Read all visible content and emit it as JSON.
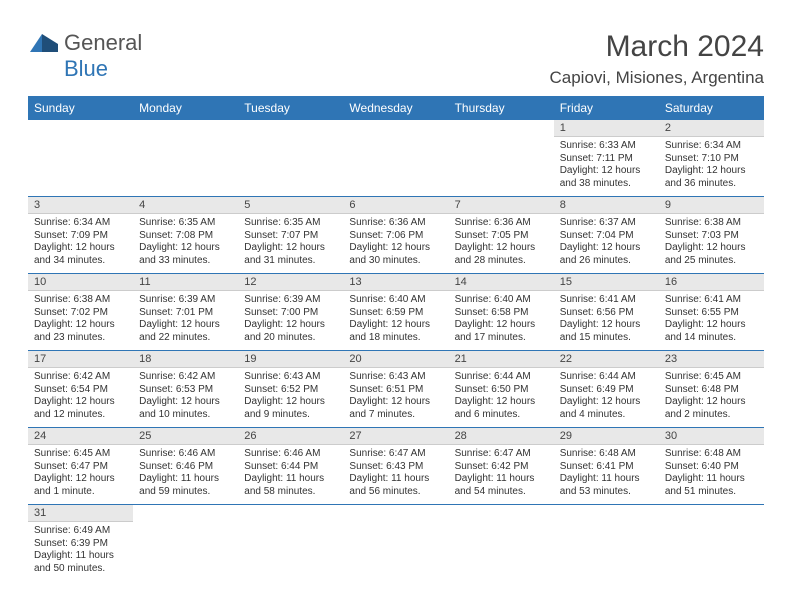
{
  "logo": {
    "text_a": "General",
    "text_b": "Blue"
  },
  "title": "March 2024",
  "location": "Capiovi, Misiones, Argentina",
  "colors": {
    "brand": "#2f75b5",
    "header_text": "#ffffff",
    "daynum_bg": "#e8e8e8",
    "text": "#333333"
  },
  "day_headers": [
    "Sunday",
    "Monday",
    "Tuesday",
    "Wednesday",
    "Thursday",
    "Friday",
    "Saturday"
  ],
  "weeks": [
    [
      {
        "empty": true
      },
      {
        "empty": true
      },
      {
        "empty": true
      },
      {
        "empty": true
      },
      {
        "empty": true
      },
      {
        "day": "1",
        "sunrise": "Sunrise: 6:33 AM",
        "sunset": "Sunset: 7:11 PM",
        "daylight_a": "Daylight: 12 hours",
        "daylight_b": "and 38 minutes."
      },
      {
        "day": "2",
        "sunrise": "Sunrise: 6:34 AM",
        "sunset": "Sunset: 7:10 PM",
        "daylight_a": "Daylight: 12 hours",
        "daylight_b": "and 36 minutes."
      }
    ],
    [
      {
        "day": "3",
        "sunrise": "Sunrise: 6:34 AM",
        "sunset": "Sunset: 7:09 PM",
        "daylight_a": "Daylight: 12 hours",
        "daylight_b": "and 34 minutes."
      },
      {
        "day": "4",
        "sunrise": "Sunrise: 6:35 AM",
        "sunset": "Sunset: 7:08 PM",
        "daylight_a": "Daylight: 12 hours",
        "daylight_b": "and 33 minutes."
      },
      {
        "day": "5",
        "sunrise": "Sunrise: 6:35 AM",
        "sunset": "Sunset: 7:07 PM",
        "daylight_a": "Daylight: 12 hours",
        "daylight_b": "and 31 minutes."
      },
      {
        "day": "6",
        "sunrise": "Sunrise: 6:36 AM",
        "sunset": "Sunset: 7:06 PM",
        "daylight_a": "Daylight: 12 hours",
        "daylight_b": "and 30 minutes."
      },
      {
        "day": "7",
        "sunrise": "Sunrise: 6:36 AM",
        "sunset": "Sunset: 7:05 PM",
        "daylight_a": "Daylight: 12 hours",
        "daylight_b": "and 28 minutes."
      },
      {
        "day": "8",
        "sunrise": "Sunrise: 6:37 AM",
        "sunset": "Sunset: 7:04 PM",
        "daylight_a": "Daylight: 12 hours",
        "daylight_b": "and 26 minutes."
      },
      {
        "day": "9",
        "sunrise": "Sunrise: 6:38 AM",
        "sunset": "Sunset: 7:03 PM",
        "daylight_a": "Daylight: 12 hours",
        "daylight_b": "and 25 minutes."
      }
    ],
    [
      {
        "day": "10",
        "sunrise": "Sunrise: 6:38 AM",
        "sunset": "Sunset: 7:02 PM",
        "daylight_a": "Daylight: 12 hours",
        "daylight_b": "and 23 minutes."
      },
      {
        "day": "11",
        "sunrise": "Sunrise: 6:39 AM",
        "sunset": "Sunset: 7:01 PM",
        "daylight_a": "Daylight: 12 hours",
        "daylight_b": "and 22 minutes."
      },
      {
        "day": "12",
        "sunrise": "Sunrise: 6:39 AM",
        "sunset": "Sunset: 7:00 PM",
        "daylight_a": "Daylight: 12 hours",
        "daylight_b": "and 20 minutes."
      },
      {
        "day": "13",
        "sunrise": "Sunrise: 6:40 AM",
        "sunset": "Sunset: 6:59 PM",
        "daylight_a": "Daylight: 12 hours",
        "daylight_b": "and 18 minutes."
      },
      {
        "day": "14",
        "sunrise": "Sunrise: 6:40 AM",
        "sunset": "Sunset: 6:58 PM",
        "daylight_a": "Daylight: 12 hours",
        "daylight_b": "and 17 minutes."
      },
      {
        "day": "15",
        "sunrise": "Sunrise: 6:41 AM",
        "sunset": "Sunset: 6:56 PM",
        "daylight_a": "Daylight: 12 hours",
        "daylight_b": "and 15 minutes."
      },
      {
        "day": "16",
        "sunrise": "Sunrise: 6:41 AM",
        "sunset": "Sunset: 6:55 PM",
        "daylight_a": "Daylight: 12 hours",
        "daylight_b": "and 14 minutes."
      }
    ],
    [
      {
        "day": "17",
        "sunrise": "Sunrise: 6:42 AM",
        "sunset": "Sunset: 6:54 PM",
        "daylight_a": "Daylight: 12 hours",
        "daylight_b": "and 12 minutes."
      },
      {
        "day": "18",
        "sunrise": "Sunrise: 6:42 AM",
        "sunset": "Sunset: 6:53 PM",
        "daylight_a": "Daylight: 12 hours",
        "daylight_b": "and 10 minutes."
      },
      {
        "day": "19",
        "sunrise": "Sunrise: 6:43 AM",
        "sunset": "Sunset: 6:52 PM",
        "daylight_a": "Daylight: 12 hours",
        "daylight_b": "and 9 minutes."
      },
      {
        "day": "20",
        "sunrise": "Sunrise: 6:43 AM",
        "sunset": "Sunset: 6:51 PM",
        "daylight_a": "Daylight: 12 hours",
        "daylight_b": "and 7 minutes."
      },
      {
        "day": "21",
        "sunrise": "Sunrise: 6:44 AM",
        "sunset": "Sunset: 6:50 PM",
        "daylight_a": "Daylight: 12 hours",
        "daylight_b": "and 6 minutes."
      },
      {
        "day": "22",
        "sunrise": "Sunrise: 6:44 AM",
        "sunset": "Sunset: 6:49 PM",
        "daylight_a": "Daylight: 12 hours",
        "daylight_b": "and 4 minutes."
      },
      {
        "day": "23",
        "sunrise": "Sunrise: 6:45 AM",
        "sunset": "Sunset: 6:48 PM",
        "daylight_a": "Daylight: 12 hours",
        "daylight_b": "and 2 minutes."
      }
    ],
    [
      {
        "day": "24",
        "sunrise": "Sunrise: 6:45 AM",
        "sunset": "Sunset: 6:47 PM",
        "daylight_a": "Daylight: 12 hours",
        "daylight_b": "and 1 minute."
      },
      {
        "day": "25",
        "sunrise": "Sunrise: 6:46 AM",
        "sunset": "Sunset: 6:46 PM",
        "daylight_a": "Daylight: 11 hours",
        "daylight_b": "and 59 minutes."
      },
      {
        "day": "26",
        "sunrise": "Sunrise: 6:46 AM",
        "sunset": "Sunset: 6:44 PM",
        "daylight_a": "Daylight: 11 hours",
        "daylight_b": "and 58 minutes."
      },
      {
        "day": "27",
        "sunrise": "Sunrise: 6:47 AM",
        "sunset": "Sunset: 6:43 PM",
        "daylight_a": "Daylight: 11 hours",
        "daylight_b": "and 56 minutes."
      },
      {
        "day": "28",
        "sunrise": "Sunrise: 6:47 AM",
        "sunset": "Sunset: 6:42 PM",
        "daylight_a": "Daylight: 11 hours",
        "daylight_b": "and 54 minutes."
      },
      {
        "day": "29",
        "sunrise": "Sunrise: 6:48 AM",
        "sunset": "Sunset: 6:41 PM",
        "daylight_a": "Daylight: 11 hours",
        "daylight_b": "and 53 minutes."
      },
      {
        "day": "30",
        "sunrise": "Sunrise: 6:48 AM",
        "sunset": "Sunset: 6:40 PM",
        "daylight_a": "Daylight: 11 hours",
        "daylight_b": "and 51 minutes."
      }
    ],
    [
      {
        "day": "31",
        "sunrise": "Sunrise: 6:49 AM",
        "sunset": "Sunset: 6:39 PM",
        "daylight_a": "Daylight: 11 hours",
        "daylight_b": "and 50 minutes."
      },
      {
        "empty": true
      },
      {
        "empty": true
      },
      {
        "empty": true
      },
      {
        "empty": true
      },
      {
        "empty": true
      },
      {
        "empty": true
      }
    ]
  ]
}
